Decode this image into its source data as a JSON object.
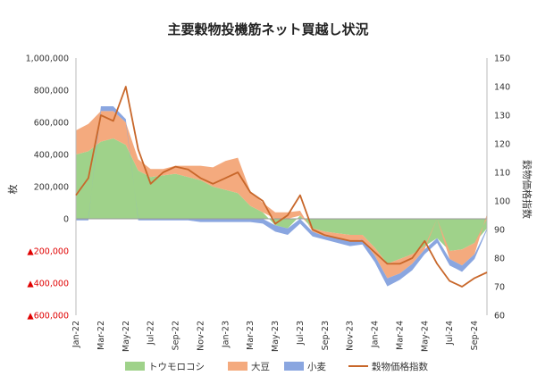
{
  "chart_data": {
    "type": "area",
    "title": "主要穀物投機筋ネット買越し状況",
    "ylabel": "枚",
    "y2label": "穀物価格指数",
    "ylim": [
      -600000,
      1000000
    ],
    "y2lim": [
      60,
      150
    ],
    "y_ticks": [
      {
        "value": 1000000,
        "label": "1,000,000"
      },
      {
        "value": 800000,
        "label": "800,000"
      },
      {
        "value": 600000,
        "label": "600,000"
      },
      {
        "value": 400000,
        "label": "400,000"
      },
      {
        "value": 200000,
        "label": "200,000"
      },
      {
        "value": 0,
        "label": "0"
      },
      {
        "value": -200000,
        "label": "▲200,000"
      },
      {
        "value": -400000,
        "label": "▲400,000"
      },
      {
        "value": -600000,
        "label": "▲600,000"
      }
    ],
    "y2_ticks": [
      150,
      140,
      130,
      120,
      110,
      100,
      90,
      80,
      70,
      60
    ],
    "x_labels": [
      "Jan-22",
      "Mar-22",
      "May-22",
      "Jul-22",
      "Sep-22",
      "Nov-22",
      "Jan-23",
      "Mar-23",
      "May-23",
      "Jul-23",
      "Sep-23",
      "Nov-23",
      "Jan-24",
      "Mar-24",
      "May-24",
      "Jul-24",
      "Sep-24"
    ],
    "grid": false,
    "legend_position": "bottom",
    "stacked": true,
    "x": [
      "Jan-22",
      "Feb-22",
      "Mar-22",
      "Apr-22",
      "May-22",
      "Jun-22",
      "Jul-22",
      "Aug-22",
      "Sep-22",
      "Oct-22",
      "Nov-22",
      "Dec-22",
      "Jan-23",
      "Feb-23",
      "Mar-23",
      "Apr-23",
      "May-23",
      "Jun-23",
      "Jul-23",
      "Aug-23",
      "Sep-23",
      "Oct-23",
      "Nov-23",
      "Dec-23",
      "Jan-24",
      "Feb-24",
      "Mar-24",
      "Apr-24",
      "May-24",
      "Jun-24",
      "Jul-24",
      "Aug-24",
      "Sep-24",
      "Oct-24"
    ],
    "series": [
      {
        "name": "トウモロコシ",
        "color": "#9fd28a",
        "values": [
          400000,
          420000,
          480000,
          500000,
          460000,
          300000,
          260000,
          270000,
          280000,
          260000,
          240000,
          200000,
          180000,
          160000,
          80000,
          40000,
          -40000,
          -60000,
          20000,
          -60000,
          -80000,
          -90000,
          -100000,
          -100000,
          -180000,
          -280000,
          -250000,
          -220000,
          -170000,
          -120000,
          -200000,
          -190000,
          -150000,
          -60000
        ]
      },
      {
        "name": "大豆",
        "color": "#f4aa7e",
        "values": [
          150000,
          170000,
          190000,
          170000,
          140000,
          70000,
          50000,
          40000,
          50000,
          70000,
          90000,
          120000,
          180000,
          220000,
          90000,
          60000,
          40000,
          40000,
          30000,
          -20000,
          -30000,
          -30000,
          -40000,
          -30000,
          -50000,
          -90000,
          -90000,
          -60000,
          -20000,
          0,
          -50000,
          -100000,
          -70000,
          30000
        ]
      },
      {
        "name": "小麦",
        "color": "#8aa6e0",
        "values": [
          -10000,
          -10000,
          30000,
          30000,
          20000,
          -10000,
          -10000,
          -10000,
          -10000,
          -10000,
          -20000,
          -20000,
          -20000,
          -20000,
          -20000,
          -30000,
          -40000,
          -40000,
          -30000,
          -30000,
          -20000,
          -30000,
          -30000,
          -30000,
          -40000,
          -50000,
          -40000,
          -40000,
          -30000,
          -30000,
          -40000,
          -40000,
          -30000,
          -10000
        ]
      }
    ],
    "line_series": {
      "name": "穀物価格指数",
      "color": "#c8672a",
      "axis": "right",
      "values": [
        102,
        108,
        130,
        128,
        140,
        118,
        106,
        110,
        112,
        111,
        108,
        106,
        108,
        110,
        103,
        100,
        92,
        95,
        102,
        90,
        88,
        87,
        86,
        86,
        82,
        78,
        78,
        80,
        86,
        78,
        72,
        70,
        73,
        75
      ]
    }
  }
}
